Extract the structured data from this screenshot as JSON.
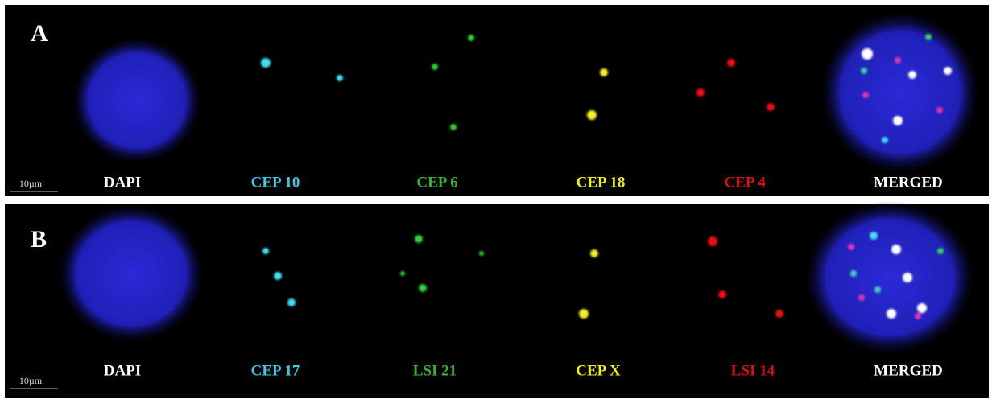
{
  "rows": [
    {
      "letter": "A",
      "scale": "10µm",
      "panels": [
        "DAPI",
        "CEP 10",
        "CEP 6",
        "CEP 18",
        "CEP 4",
        "MERGED"
      ]
    },
    {
      "letter": "B",
      "scale": "10µm",
      "panels": [
        "DAPI",
        "CEP 17",
        "LSI 21",
        "CEP X",
        "LSI 14",
        "MERGED"
      ]
    }
  ]
}
